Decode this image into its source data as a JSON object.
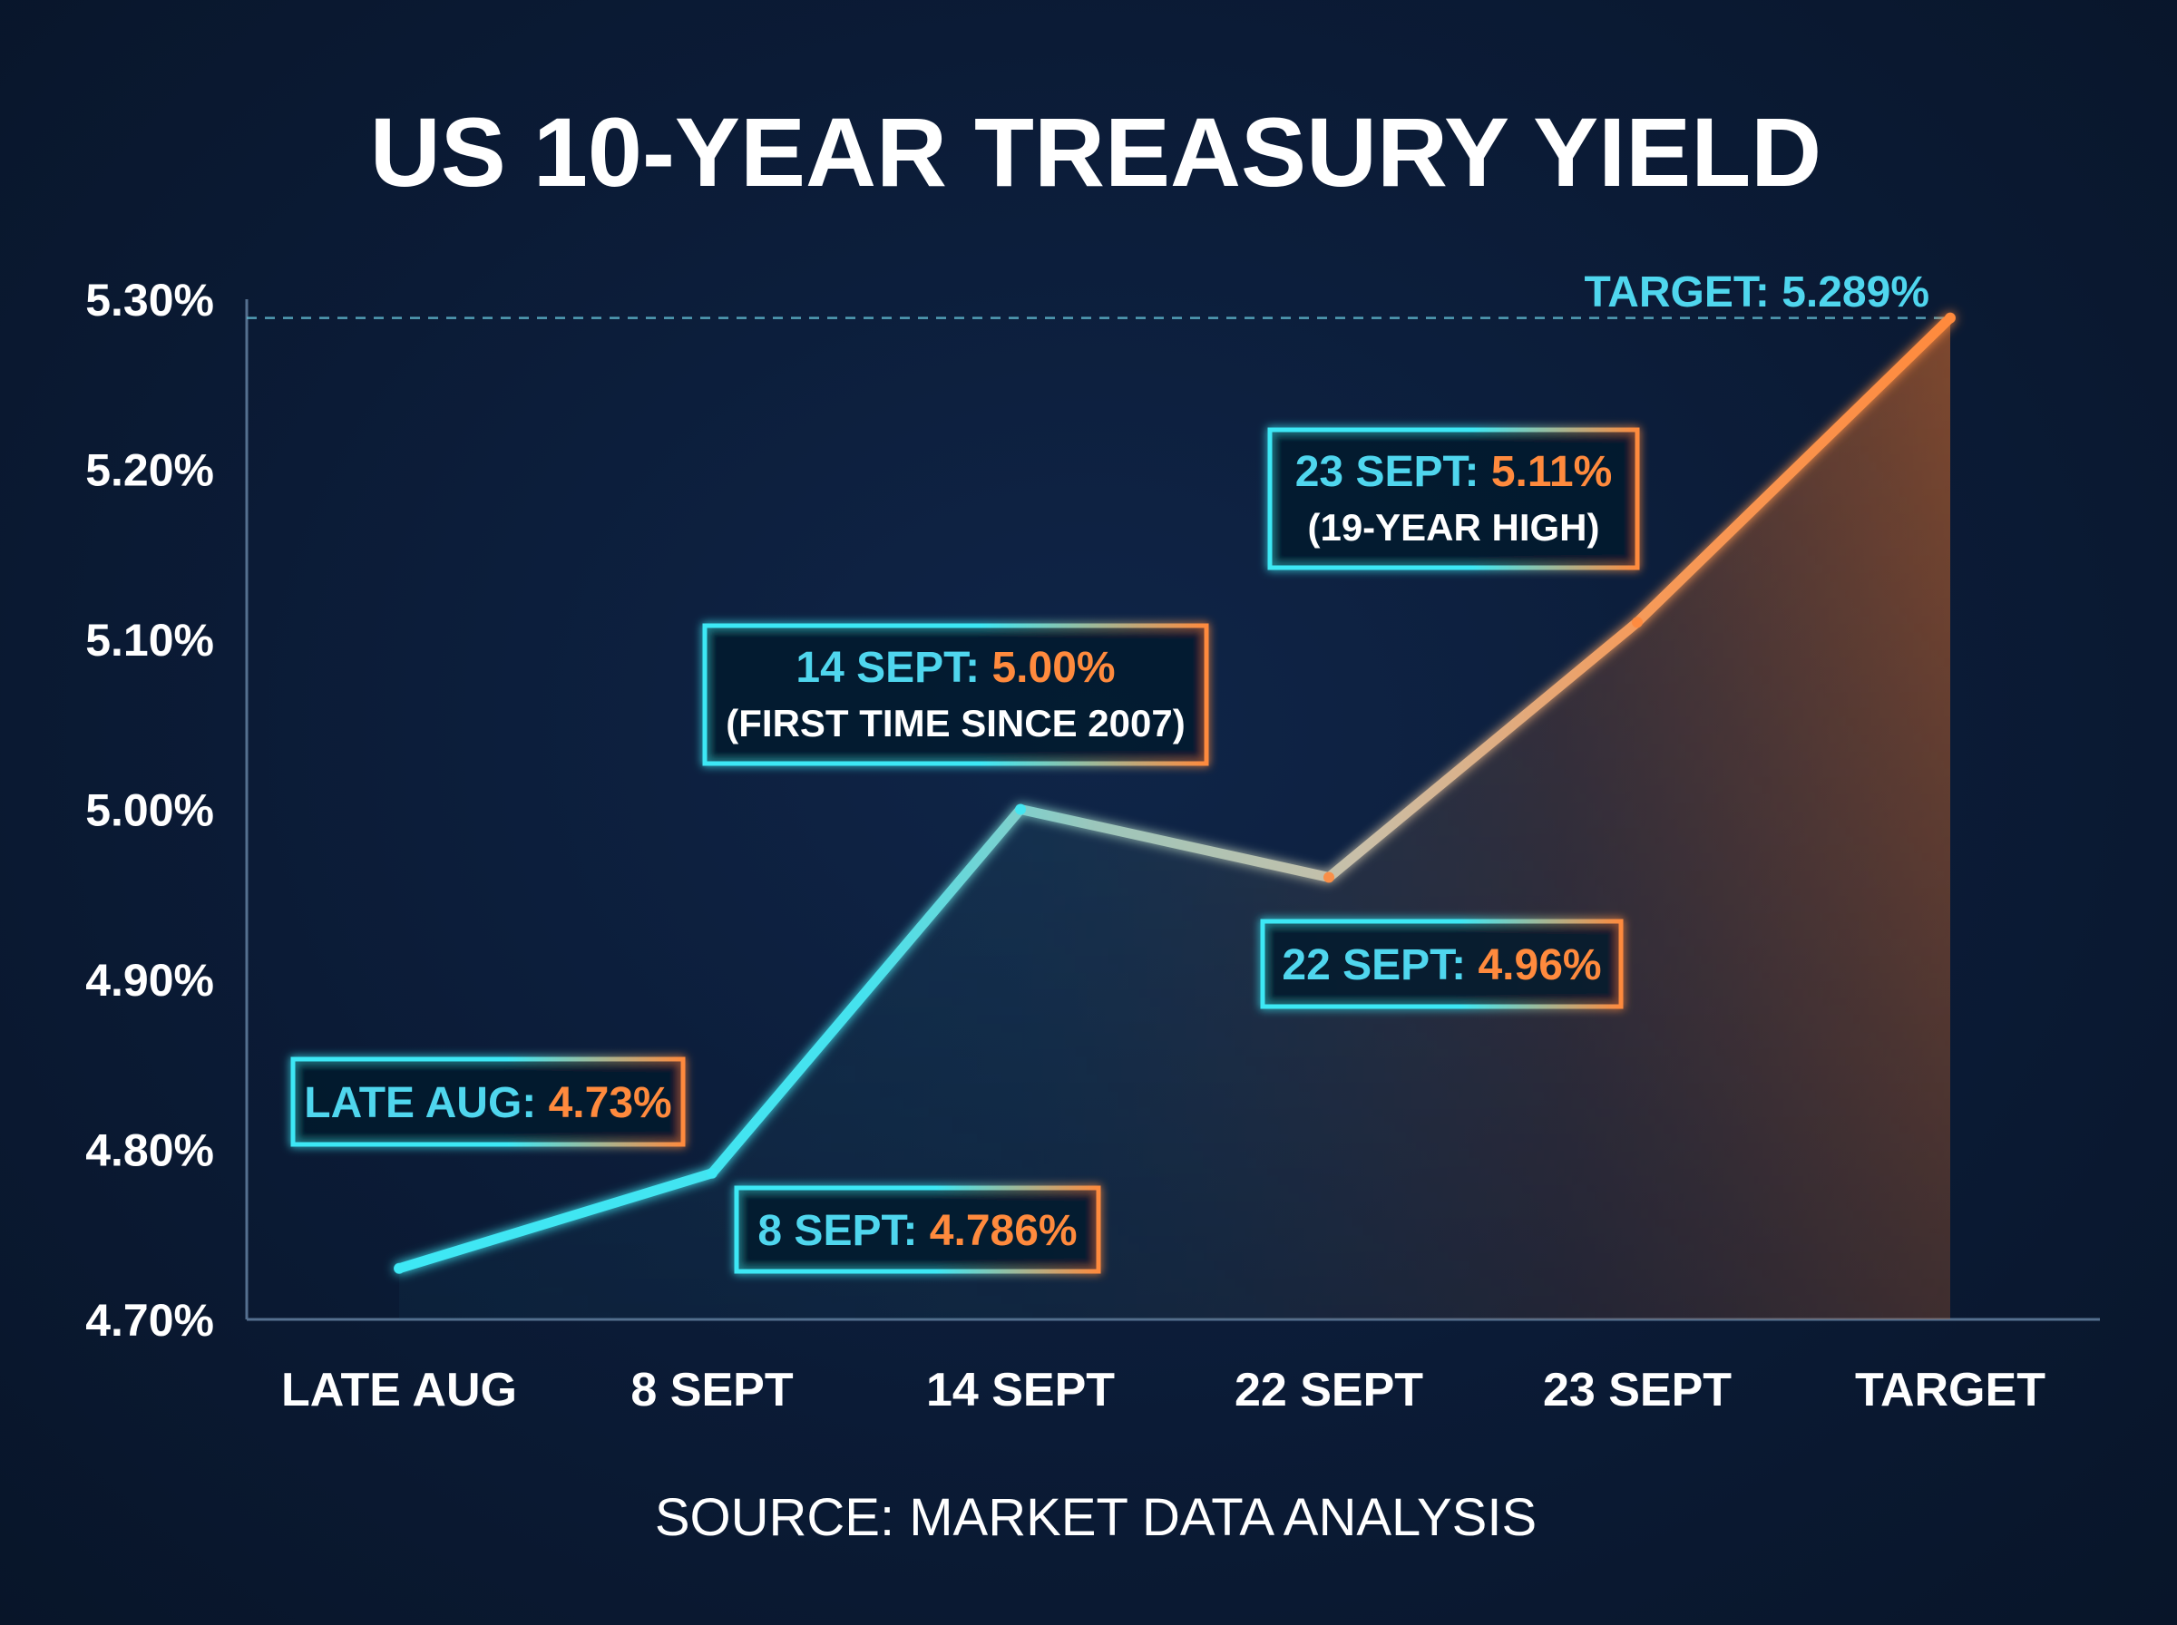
{
  "chart_data": {
    "type": "area",
    "title": "US 10-YEAR TREASURY YIELD",
    "source": "SOURCE: MARKET DATA ANALYSIS",
    "categories": [
      "LATE AUG",
      "8 SEPT",
      "14 SEPT",
      "22 SEPT",
      "23 SEPT",
      "TARGET"
    ],
    "series": [
      {
        "values": [
          4.73,
          4.786,
          5.0,
          4.96,
          5.11,
          5.289
        ]
      }
    ],
    "ylim": [
      4.7,
      5.3
    ],
    "yticks": [
      "4.70%",
      "4.80%",
      "4.90%",
      "5.00%",
      "5.10%",
      "5.20%",
      "5.30%"
    ],
    "ytick_values": [
      4.7,
      4.8,
      4.9,
      5.0,
      5.1,
      5.2,
      5.3
    ],
    "reference_line": {
      "value": 5.289,
      "label": "TARGET: 5.289%"
    },
    "annotations": [
      {
        "point": 0,
        "label": "LATE AUG:",
        "value": "4.73%"
      },
      {
        "point": 1,
        "label": "8 SEPT:",
        "value": "4.786%"
      },
      {
        "point": 2,
        "label": "14 SEPT:",
        "value": "5.00%",
        "note": "(FIRST TIME SINCE 2007)"
      },
      {
        "point": 3,
        "label": "22 SEPT:",
        "value": "4.96%"
      },
      {
        "point": 4,
        "label": "23 SEPT:",
        "value": "5.11%",
        "note": "(19-YEAR HIGH)"
      }
    ],
    "grid": false,
    "colors": {
      "start": "#3ee8f5",
      "end": "#ff8a3d",
      "label": "#4fd6ee",
      "value": "#ff8a3d",
      "axis": "#55708f",
      "reference": "#5fb6cc"
    }
  }
}
